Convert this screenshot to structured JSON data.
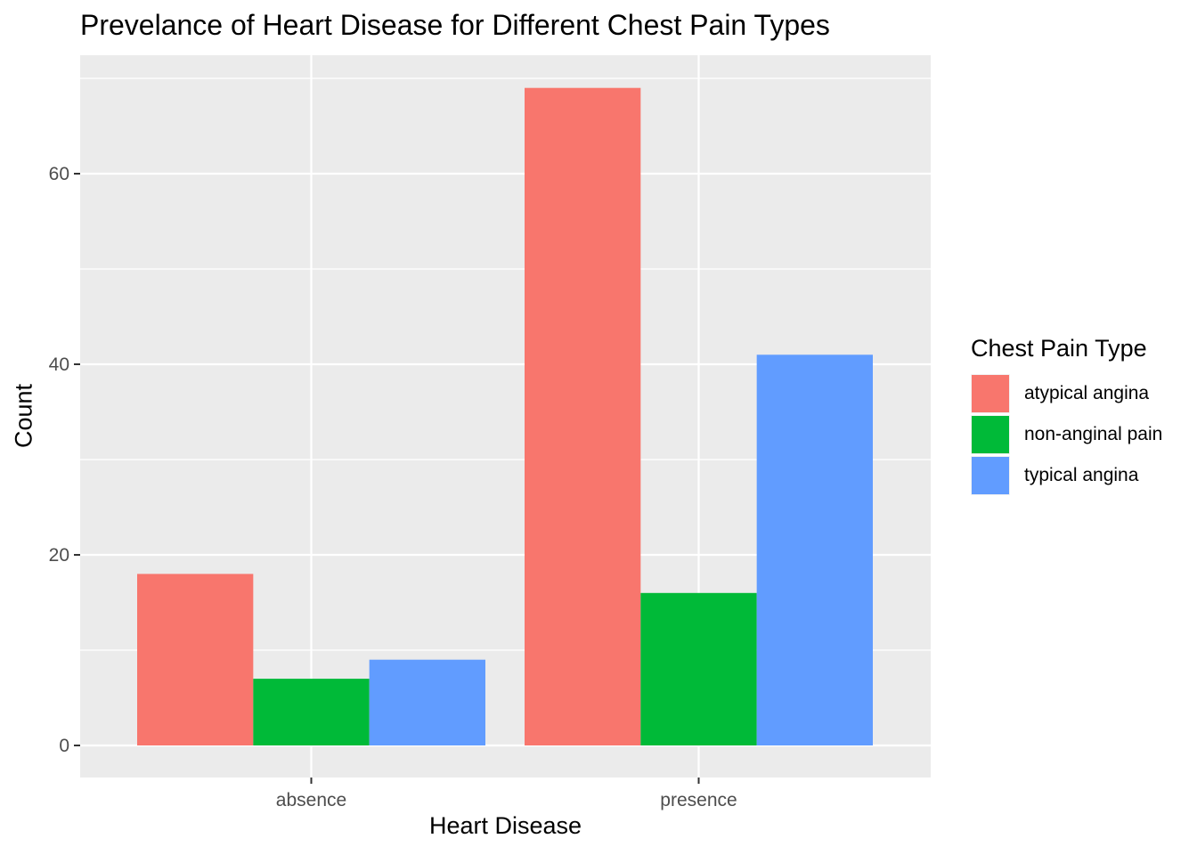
{
  "chart_data": {
    "type": "bar",
    "title": "Prevelance of Heart Disease for Different Chest Pain Types",
    "xlabel": "Heart Disease",
    "ylabel": "Count",
    "categories": [
      "absence",
      "presence"
    ],
    "series": [
      {
        "name": "atypical angina",
        "color": "#F8766D",
        "values": [
          18,
          69
        ]
      },
      {
        "name": "non-anginal pain",
        "color": "#00BA38",
        "values": [
          7,
          16
        ]
      },
      {
        "name": "typical angina",
        "color": "#619CFF",
        "values": [
          9,
          41
        ]
      }
    ],
    "ylim": [
      0,
      72
    ],
    "yticks": [
      "0",
      "20",
      "40",
      "60"
    ],
    "legend_title": "Chest Pain Type",
    "legend_position": "right",
    "grid": true,
    "panel_background": "#EBEBEB"
  }
}
